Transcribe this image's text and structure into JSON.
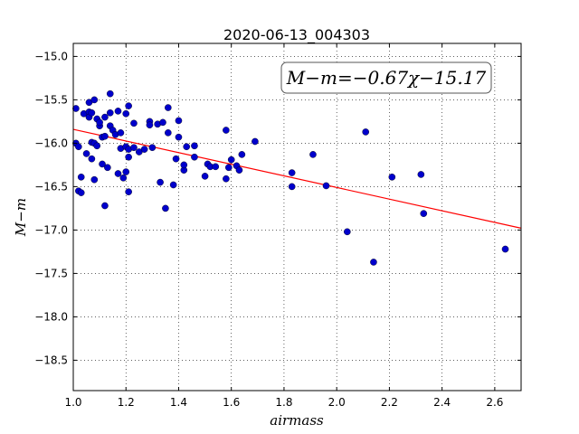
{
  "chart_data": {
    "type": "scatter",
    "title": "2020-06-13_004303",
    "xlabel": "airmass",
    "ylabel": "M−m",
    "xlim": [
      1.0,
      2.7
    ],
    "ylim": [
      -18.85,
      -14.85
    ],
    "y_inverted": true,
    "grid": true,
    "x_ticks": [
      1.0,
      1.2,
      1.4,
      1.6,
      1.8,
      2.0,
      2.2,
      2.4,
      2.6
    ],
    "x_tick_labels": [
      "1.0",
      "1.2",
      "1.4",
      "1.6",
      "1.8",
      "2.0",
      "2.2",
      "2.4",
      "2.6"
    ],
    "y_ticks": [
      -15.0,
      -15.5,
      -16.0,
      -16.5,
      -17.0,
      -17.5,
      -18.0,
      -18.5
    ],
    "y_tick_labels": [
      "−15.0",
      "−15.5",
      "−16.0",
      "−16.5",
      "−17.0",
      "−17.5",
      "−18.0",
      "−18.5"
    ],
    "annotation": "M−m=−0.67χ−15.17",
    "fit": {
      "slope": -0.67,
      "intercept": -15.17,
      "x_range": [
        1.0,
        2.7
      ],
      "color": "#ff0000"
    },
    "point_color": "#0000cc",
    "points": [
      [
        1.01,
        -15.6
      ],
      [
        1.01,
        -16.0
      ],
      [
        1.02,
        -16.04
      ],
      [
        1.02,
        -16.55
      ],
      [
        1.03,
        -16.57
      ],
      [
        1.03,
        -16.39
      ],
      [
        1.04,
        -15.66
      ],
      [
        1.05,
        -16.12
      ],
      [
        1.06,
        -15.53
      ],
      [
        1.06,
        -15.64
      ],
      [
        1.06,
        -15.7
      ],
      [
        1.07,
        -15.65
      ],
      [
        1.07,
        -15.99
      ],
      [
        1.07,
        -16.18
      ],
      [
        1.08,
        -16.0
      ],
      [
        1.08,
        -16.42
      ],
      [
        1.08,
        -15.5
      ],
      [
        1.09,
        -15.72
      ],
      [
        1.09,
        -16.03
      ],
      [
        1.1,
        -15.8
      ],
      [
        1.1,
        -15.76
      ],
      [
        1.11,
        -16.24
      ],
      [
        1.11,
        -15.93
      ],
      [
        1.12,
        -15.92
      ],
      [
        1.12,
        -15.7
      ],
      [
        1.12,
        -16.72
      ],
      [
        1.13,
        -16.28
      ],
      [
        1.14,
        -15.43
      ],
      [
        1.14,
        -15.65
      ],
      [
        1.14,
        -15.8
      ],
      [
        1.15,
        -15.85
      ],
      [
        1.16,
        -15.9
      ],
      [
        1.17,
        -15.63
      ],
      [
        1.17,
        -16.35
      ],
      [
        1.18,
        -15.88
      ],
      [
        1.18,
        -16.06
      ],
      [
        1.19,
        -16.4
      ],
      [
        1.2,
        -15.66
      ],
      [
        1.2,
        -16.04
      ],
      [
        1.2,
        -16.33
      ],
      [
        1.21,
        -15.57
      ],
      [
        1.21,
        -16.07
      ],
      [
        1.21,
        -16.16
      ],
      [
        1.21,
        -16.56
      ],
      [
        1.23,
        -16.05
      ],
      [
        1.23,
        -15.77
      ],
      [
        1.25,
        -16.1
      ],
      [
        1.27,
        -16.07
      ],
      [
        1.29,
        -15.75
      ],
      [
        1.29,
        -15.79
      ],
      [
        1.3,
        -16.05
      ],
      [
        1.32,
        -15.78
      ],
      [
        1.33,
        -16.45
      ],
      [
        1.34,
        -15.76
      ],
      [
        1.35,
        -16.75
      ],
      [
        1.36,
        -15.88
      ],
      [
        1.36,
        -15.59
      ],
      [
        1.38,
        -16.48
      ],
      [
        1.39,
        -16.18
      ],
      [
        1.4,
        -15.93
      ],
      [
        1.4,
        -15.74
      ],
      [
        1.42,
        -16.31
      ],
      [
        1.42,
        -16.25
      ],
      [
        1.43,
        -16.04
      ],
      [
        1.46,
        -16.03
      ],
      [
        1.46,
        -16.16
      ],
      [
        1.5,
        -16.38
      ],
      [
        1.51,
        -16.24
      ],
      [
        1.52,
        -16.27
      ],
      [
        1.54,
        -16.27
      ],
      [
        1.58,
        -15.85
      ],
      [
        1.58,
        -16.41
      ],
      [
        1.59,
        -16.28
      ],
      [
        1.6,
        -16.19
      ],
      [
        1.62,
        -16.26
      ],
      [
        1.63,
        -16.31
      ],
      [
        1.64,
        -16.13
      ],
      [
        1.69,
        -15.98
      ],
      [
        1.83,
        -16.34
      ],
      [
        1.83,
        -16.5
      ],
      [
        1.91,
        -16.13
      ],
      [
        1.96,
        -16.49
      ],
      [
        2.04,
        -17.02
      ],
      [
        2.11,
        -15.87
      ],
      [
        2.14,
        -17.37
      ],
      [
        2.21,
        -16.39
      ],
      [
        2.32,
        -16.36
      ],
      [
        2.33,
        -16.81
      ],
      [
        2.64,
        -17.22
      ]
    ]
  }
}
